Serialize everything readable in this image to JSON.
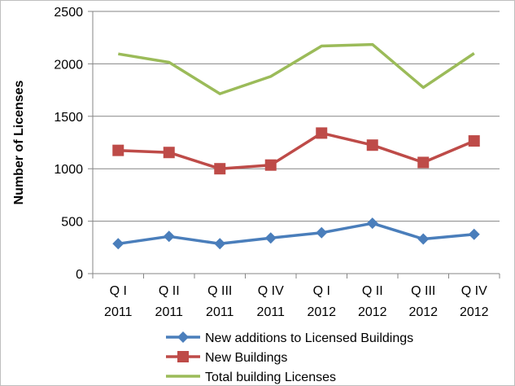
{
  "chart_data": {
    "type": "line",
    "categories": [
      [
        "Q I",
        "2011"
      ],
      [
        "Q II",
        "2011"
      ],
      [
        "Q III",
        "2011"
      ],
      [
        "Q IV",
        "2011"
      ],
      [
        "Q I",
        "2012"
      ],
      [
        "Q II",
        "2012"
      ],
      [
        "Q III",
        "2012"
      ],
      [
        "Q IV",
        "2012"
      ]
    ],
    "ylabel": "Number of Licenses",
    "ylim": [
      0,
      2500
    ],
    "yticks": [
      0,
      500,
      1000,
      1500,
      2000,
      2500
    ],
    "grid": "horizontal",
    "legend_position": "bottom",
    "series": [
      {
        "name": "New additions to Licensed Buildings",
        "values": [
          285,
          355,
          285,
          340,
          390,
          480,
          330,
          375
        ],
        "color": "#4a7ebb",
        "marker": "diamond"
      },
      {
        "name": "New Buildings",
        "values": [
          1175,
          1155,
          1000,
          1035,
          1340,
          1225,
          1060,
          1265
        ],
        "color": "#be4b48",
        "marker": "square"
      },
      {
        "name": "Total building Licenses",
        "values": [
          2095,
          2015,
          1715,
          1880,
          2170,
          2185,
          1775,
          2100
        ],
        "color": "#9bbb59",
        "marker": "none"
      }
    ]
  }
}
